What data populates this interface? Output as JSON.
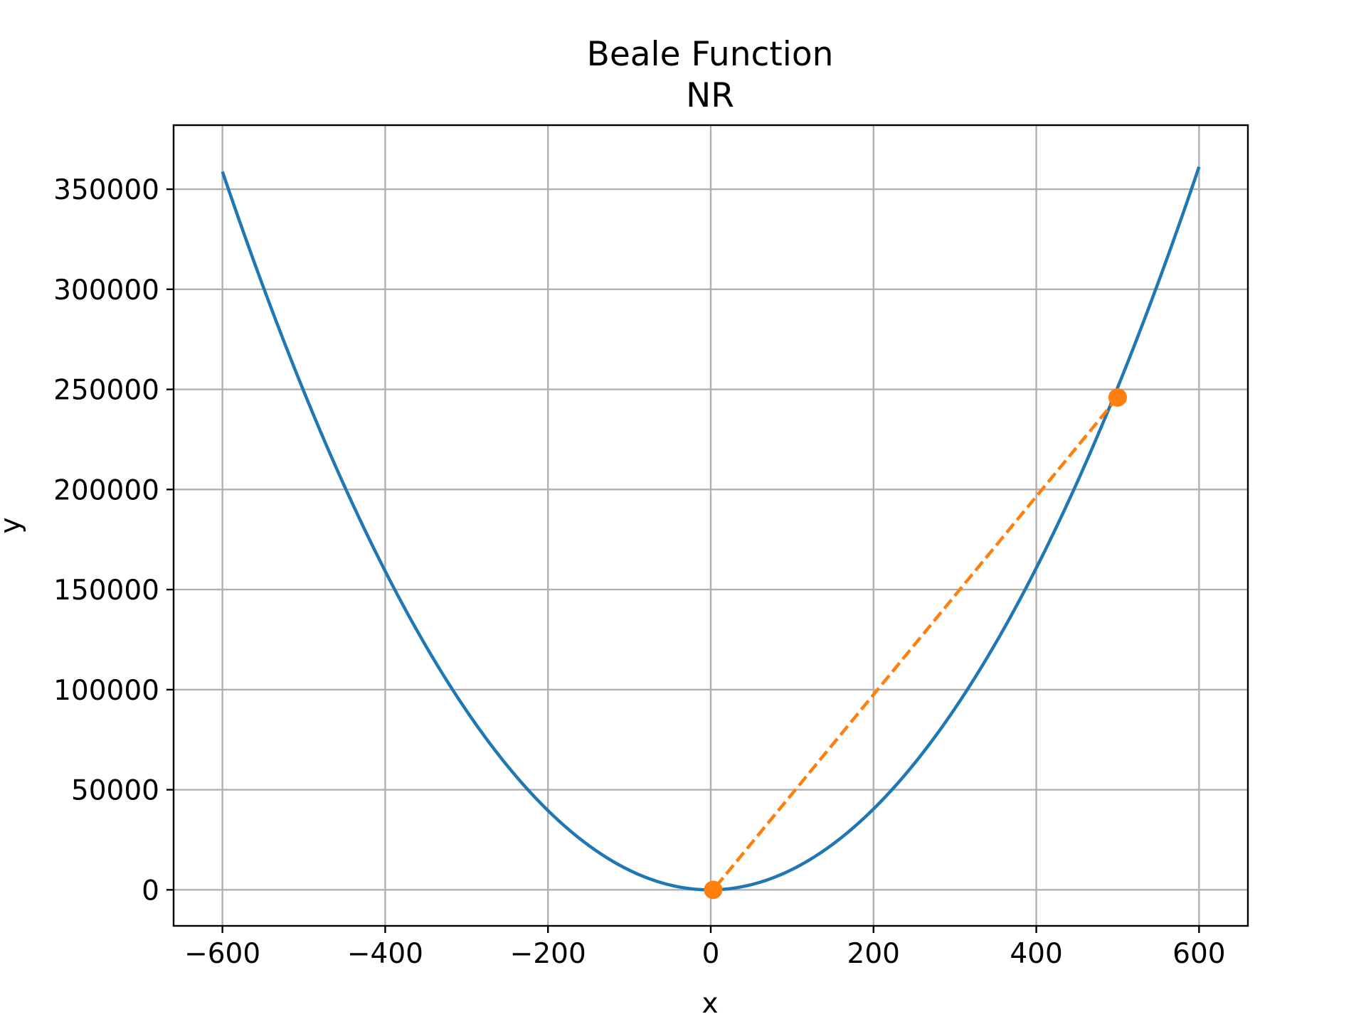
{
  "chart_data": {
    "type": "line",
    "title": "Beale Function",
    "subtitle": "NR",
    "xlabel": "x",
    "ylabel": "y",
    "xlim": [
      -660,
      660
    ],
    "ylim": [
      -18000,
      382000
    ],
    "xticks": [
      -600,
      -400,
      -200,
      0,
      200,
      400,
      600
    ],
    "xtick_labels": [
      "−600",
      "−400",
      "−200",
      "0",
      "200",
      "400",
      "600"
    ],
    "yticks": [
      0,
      50000,
      100000,
      150000,
      200000,
      250000,
      300000,
      350000
    ],
    "ytick_labels": [
      "0",
      "50000",
      "100000",
      "150000",
      "200000",
      "250000",
      "300000",
      "350000"
    ],
    "grid": true,
    "series": [
      {
        "kind": "curve",
        "function": "y = x^2 + 2x + 1",
        "x_range": [
          -600,
          600
        ],
        "x": [
          -600,
          -500,
          -400,
          -300,
          -200,
          -100,
          0,
          100,
          200,
          300,
          400,
          500,
          600
        ],
        "y": [
          358801,
          249001,
          159201,
          89401,
          39601,
          9801,
          1,
          10201,
          40401,
          90601,
          160801,
          251001,
          361201
        ],
        "color": "#1f77b4",
        "line_style": "solid"
      },
      {
        "kind": "iterations",
        "x": [
          500,
          3
        ],
        "y": [
          246000,
          0
        ],
        "color": "#ff7f0e",
        "line_style": "dashed",
        "marker": "circle"
      }
    ]
  }
}
